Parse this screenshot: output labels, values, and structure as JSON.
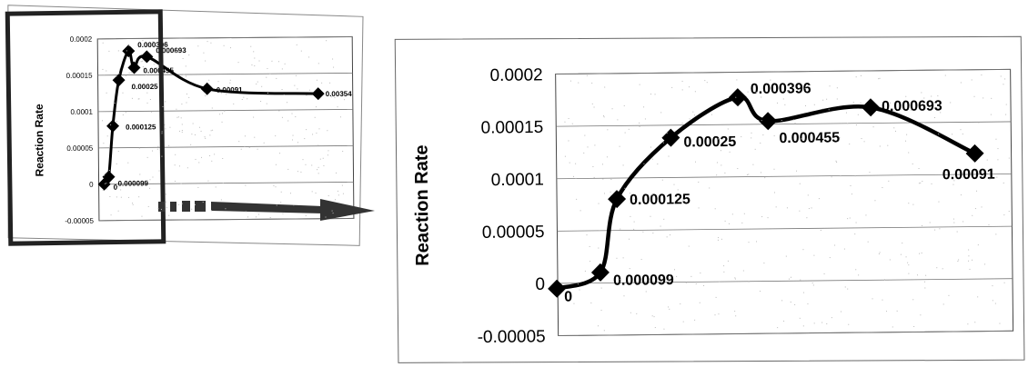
{
  "chart_data": [
    {
      "type": "line",
      "title": "",
      "xlabel": "",
      "ylabel": "Reaction Rate",
      "ylim": [
        -5e-05,
        0.0002
      ],
      "yticks": [
        "0.0002",
        "0.00015",
        "0.0001",
        "0.00005",
        "0",
        "-0.00005"
      ],
      "grid": true,
      "legend": "none",
      "x": [
        0,
        1,
        2,
        3,
        4,
        5,
        6,
        7,
        8
      ],
      "series": [
        {
          "values": [
            0,
            1e-05,
            8e-05,
            0.000143,
            0.000183,
            0.00016,
            0.000175,
            0.00013,
            0.000122
          ],
          "labels": [
            "0",
            "0.000099",
            "0.000125",
            "0.00025",
            "0.000396",
            "0.000455",
            "0.000693",
            "0.00091",
            "0.00354"
          ]
        }
      ]
    },
    {
      "type": "line",
      "title": "",
      "xlabel": "",
      "ylabel": "Reaction Rate",
      "ylim": [
        -5e-05,
        0.0002
      ],
      "yticks": [
        "0.0002",
        "0.00015",
        "0.0001",
        "0.00005",
        "0",
        "-0.00005"
      ],
      "grid": true,
      "legend": "none",
      "x": [
        0,
        1,
        2,
        3,
        4,
        5,
        6,
        7
      ],
      "series": [
        {
          "values": [
            -5e-06,
            1e-05,
            8e-05,
            0.000138,
            0.000176,
            0.000153,
            0.000165,
            0.00012
          ],
          "labels": [
            "0",
            "0.000099",
            "0.000125",
            "0.00025",
            "0.000396",
            "0.000455",
            "0.000693",
            "0.00091"
          ]
        }
      ]
    }
  ],
  "colors": {
    "marker": "#000000",
    "line": "#000000",
    "grid": "#777777",
    "arrow": "#333333",
    "highlight_box": "#222222"
  }
}
